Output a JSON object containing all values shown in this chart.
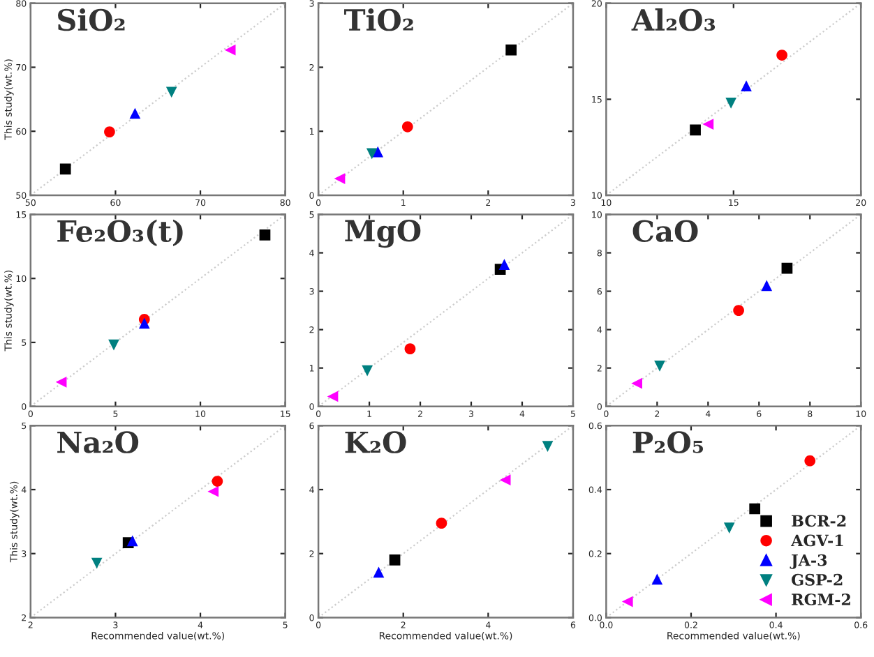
{
  "chart_data": [
    {
      "type": "scatter",
      "title": "SiO₂",
      "ylabel": "This study(wt.%)",
      "xlim": [
        50,
        80
      ],
      "ylim": [
        50,
        80
      ],
      "xticks": [
        50,
        60,
        70,
        80
      ],
      "yticks": [
        50,
        60,
        70,
        80
      ],
      "series": [
        {
          "type": "line",
          "color": "#cccccc",
          "line_style": "dotted",
          "x": [
            50,
            80
          ],
          "values": [
            50,
            80
          ]
        },
        {
          "color": "#000000",
          "marker": "square",
          "x": [
            54.1
          ],
          "values": [
            54.1
          ]
        },
        {
          "color": "#ff0000",
          "marker": "circle",
          "x": [
            59.3
          ],
          "values": [
            59.9
          ]
        },
        {
          "color": "#0000ff",
          "marker": "triangle",
          "x": [
            62.3
          ],
          "values": [
            62.8
          ]
        },
        {
          "color": "#008080",
          "marker": "triangle_down",
          "x": [
            66.6
          ],
          "values": [
            66.1
          ]
        },
        {
          "color": "#ff00ff",
          "marker": "triangle_left",
          "x": [
            73.5
          ],
          "values": [
            72.7
          ]
        }
      ]
    },
    {
      "type": "scatter",
      "title": "TiO₂",
      "xlim": [
        0,
        3
      ],
      "ylim": [
        0,
        3
      ],
      "xticks": [
        0,
        1,
        2,
        3
      ],
      "yticks": [
        0,
        1,
        2,
        3
      ],
      "series": [
        {
          "type": "line",
          "color": "#cccccc",
          "line_style": "dotted",
          "x": [
            0,
            3
          ],
          "values": [
            0,
            3
          ]
        },
        {
          "color": "#000000",
          "marker": "square",
          "x": [
            2.27
          ],
          "values": [
            2.27
          ]
        },
        {
          "color": "#ff0000",
          "marker": "circle",
          "x": [
            1.05
          ],
          "values": [
            1.07
          ]
        },
        {
          "color": "#0000ff",
          "marker": "triangle",
          "x": [
            0.7
          ],
          "values": [
            0.68
          ]
        },
        {
          "color": "#008080",
          "marker": "triangle_down",
          "x": [
            0.63
          ],
          "values": [
            0.65
          ]
        },
        {
          "color": "#ff00ff",
          "marker": "triangle_left",
          "x": [
            0.25
          ],
          "values": [
            0.26
          ]
        }
      ]
    },
    {
      "type": "scatter",
      "title": "Al₂O₃",
      "xlim": [
        10,
        20
      ],
      "ylim": [
        10,
        20
      ],
      "xticks": [
        10,
        15,
        20
      ],
      "yticks": [
        10,
        15,
        20
      ],
      "series": [
        {
          "type": "line",
          "color": "#cccccc",
          "line_style": "dotted",
          "x": [
            10,
            20
          ],
          "values": [
            10,
            20
          ]
        },
        {
          "color": "#000000",
          "marker": "square",
          "x": [
            13.5
          ],
          "values": [
            13.4
          ]
        },
        {
          "color": "#ff0000",
          "marker": "circle",
          "x": [
            16.9
          ],
          "values": [
            17.3
          ]
        },
        {
          "color": "#0000ff",
          "marker": "triangle",
          "x": [
            15.5
          ],
          "values": [
            15.7
          ]
        },
        {
          "color": "#008080",
          "marker": "triangle_down",
          "x": [
            14.9
          ],
          "values": [
            14.8
          ]
        },
        {
          "color": "#ff00ff",
          "marker": "triangle_left",
          "x": [
            14.0
          ],
          "values": [
            13.7
          ]
        }
      ]
    },
    {
      "type": "scatter",
      "title": "Fe₂O₃(t)",
      "ylabel": "This study(wt.%)",
      "xlim": [
        0,
        15
      ],
      "ylim": [
        0,
        15
      ],
      "xticks": [
        0,
        5,
        10,
        15
      ],
      "yticks": [
        0,
        5,
        10,
        15
      ],
      "series": [
        {
          "type": "line",
          "color": "#cccccc",
          "line_style": "dotted",
          "x": [
            0,
            15
          ],
          "values": [
            0,
            15
          ]
        },
        {
          "color": "#000000",
          "marker": "square",
          "x": [
            13.8
          ],
          "values": [
            13.4
          ]
        },
        {
          "color": "#ff0000",
          "marker": "circle",
          "x": [
            6.7
          ],
          "values": [
            6.8
          ]
        },
        {
          "color": "#0000ff",
          "marker": "triangle",
          "x": [
            6.7
          ],
          "values": [
            6.5
          ]
        },
        {
          "color": "#008080",
          "marker": "triangle_down",
          "x": [
            4.9
          ],
          "values": [
            4.8
          ]
        },
        {
          "color": "#ff00ff",
          "marker": "triangle_left",
          "x": [
            1.8
          ],
          "values": [
            1.9
          ]
        }
      ]
    },
    {
      "type": "scatter",
      "title": "MgO",
      "xlim": [
        0,
        5
      ],
      "ylim": [
        0,
        5
      ],
      "xticks": [
        0,
        1,
        2,
        3,
        4,
        5
      ],
      "yticks": [
        0,
        1,
        2,
        3,
        4,
        5
      ],
      "series": [
        {
          "type": "line",
          "color": "#cccccc",
          "line_style": "dotted",
          "x": [
            0,
            5
          ],
          "values": [
            0,
            5
          ]
        },
        {
          "color": "#000000",
          "marker": "square",
          "x": [
            3.57
          ],
          "values": [
            3.57
          ]
        },
        {
          "color": "#ff0000",
          "marker": "circle",
          "x": [
            1.8
          ],
          "values": [
            1.5
          ]
        },
        {
          "color": "#0000ff",
          "marker": "triangle",
          "x": [
            3.65
          ],
          "values": [
            3.7
          ]
        },
        {
          "color": "#008080",
          "marker": "triangle_down",
          "x": [
            0.96
          ],
          "values": [
            0.93
          ]
        },
        {
          "color": "#ff00ff",
          "marker": "triangle_left",
          "x": [
            0.28
          ],
          "values": [
            0.26
          ]
        }
      ]
    },
    {
      "type": "scatter",
      "title": "CaO",
      "xlim": [
        0,
        10
      ],
      "ylim": [
        0,
        10
      ],
      "xticks": [
        0,
        2,
        4,
        6,
        8,
        10
      ],
      "yticks": [
        0,
        2,
        4,
        6,
        8,
        10
      ],
      "series": [
        {
          "type": "line",
          "color": "#cccccc",
          "line_style": "dotted",
          "x": [
            0,
            10
          ],
          "values": [
            0,
            10
          ]
        },
        {
          "color": "#000000",
          "marker": "square",
          "x": [
            7.1
          ],
          "values": [
            7.2
          ]
        },
        {
          "color": "#ff0000",
          "marker": "circle",
          "x": [
            5.2
          ],
          "values": [
            5.0
          ]
        },
        {
          "color": "#0000ff",
          "marker": "triangle",
          "x": [
            6.3
          ],
          "values": [
            6.3
          ]
        },
        {
          "color": "#008080",
          "marker": "triangle_down",
          "x": [
            2.1
          ],
          "values": [
            2.1
          ]
        },
        {
          "color": "#ff00ff",
          "marker": "triangle_left",
          "x": [
            1.2
          ],
          "values": [
            1.2
          ]
        }
      ]
    },
    {
      "type": "scatter",
      "title": "Na₂O",
      "ylabel": "This study(wt.%)",
      "xlabel": "Recommended value(wt.%)",
      "xlim": [
        2,
        5
      ],
      "ylim": [
        2,
        5
      ],
      "xticks": [
        2,
        3,
        4,
        5
      ],
      "yticks": [
        2,
        3,
        4,
        5
      ],
      "series": [
        {
          "type": "line",
          "color": "#cccccc",
          "line_style": "dotted",
          "x": [
            2,
            5
          ],
          "values": [
            2,
            5
          ]
        },
        {
          "color": "#000000",
          "marker": "square",
          "x": [
            3.15
          ],
          "values": [
            3.17
          ]
        },
        {
          "color": "#ff0000",
          "marker": "circle",
          "x": [
            4.2
          ],
          "values": [
            4.13
          ]
        },
        {
          "color": "#0000ff",
          "marker": "triangle",
          "x": [
            3.2
          ],
          "values": [
            3.2
          ]
        },
        {
          "color": "#008080",
          "marker": "triangle_down",
          "x": [
            2.78
          ],
          "values": [
            2.85
          ]
        },
        {
          "color": "#ff00ff",
          "marker": "triangle_left",
          "x": [
            4.15
          ],
          "values": [
            3.97
          ]
        }
      ]
    },
    {
      "type": "scatter",
      "title": "K₂O",
      "xlabel": "Recommended value(wt.%)",
      "xlim": [
        0,
        6
      ],
      "ylim": [
        0,
        6
      ],
      "xticks": [
        0,
        2,
        4,
        6
      ],
      "yticks": [
        0,
        2,
        4,
        6
      ],
      "series": [
        {
          "type": "line",
          "color": "#cccccc",
          "line_style": "dotted",
          "x": [
            0,
            6
          ],
          "values": [
            0,
            6
          ]
        },
        {
          "color": "#000000",
          "marker": "square",
          "x": [
            1.8
          ],
          "values": [
            1.8
          ]
        },
        {
          "color": "#ff0000",
          "marker": "circle",
          "x": [
            2.9
          ],
          "values": [
            2.95
          ]
        },
        {
          "color": "#0000ff",
          "marker": "triangle",
          "x": [
            1.42
          ],
          "values": [
            1.42
          ]
        },
        {
          "color": "#008080",
          "marker": "triangle_down",
          "x": [
            5.4
          ],
          "values": [
            5.35
          ]
        },
        {
          "color": "#ff00ff",
          "marker": "triangle_left",
          "x": [
            4.4
          ],
          "values": [
            4.3
          ]
        }
      ]
    },
    {
      "type": "scatter",
      "title": "P₂O₅",
      "xlabel": "Recommended value(wt.%)",
      "legend": "bottom right",
      "xlim": [
        0,
        0.6
      ],
      "ylim": [
        0,
        0.6
      ],
      "xticks": [
        {
          "value": 0,
          "label": "0.0"
        },
        0.2,
        0.4,
        0.6
      ],
      "yticks": [
        {
          "value": 0,
          "label": "0.0"
        },
        0.2,
        0.4,
        0.6
      ],
      "series": [
        {
          "type": "line",
          "color": "#cccccc",
          "line_style": "dotted",
          "x": [
            0,
            0.6
          ],
          "values": [
            0,
            0.6
          ]
        },
        {
          "name": "BCR-2",
          "color": "#000000",
          "marker": "square",
          "x": [
            0.35
          ],
          "values": [
            0.34
          ]
        },
        {
          "name": "AGV-1",
          "color": "#ff0000",
          "marker": "circle",
          "x": [
            0.48
          ],
          "values": [
            0.49
          ]
        },
        {
          "name": "JA-3",
          "color": "#0000ff",
          "marker": "triangle",
          "x": [
            0.12
          ],
          "values": [
            0.12
          ]
        },
        {
          "name": "GSP-2",
          "color": "#008080",
          "marker": "triangle_down",
          "x": [
            0.29
          ],
          "values": [
            0.28
          ]
        },
        {
          "name": "RGM-2",
          "color": "#ff00ff",
          "marker": "triangle_left",
          "x": [
            0.05
          ],
          "values": [
            0.05
          ]
        }
      ]
    }
  ]
}
